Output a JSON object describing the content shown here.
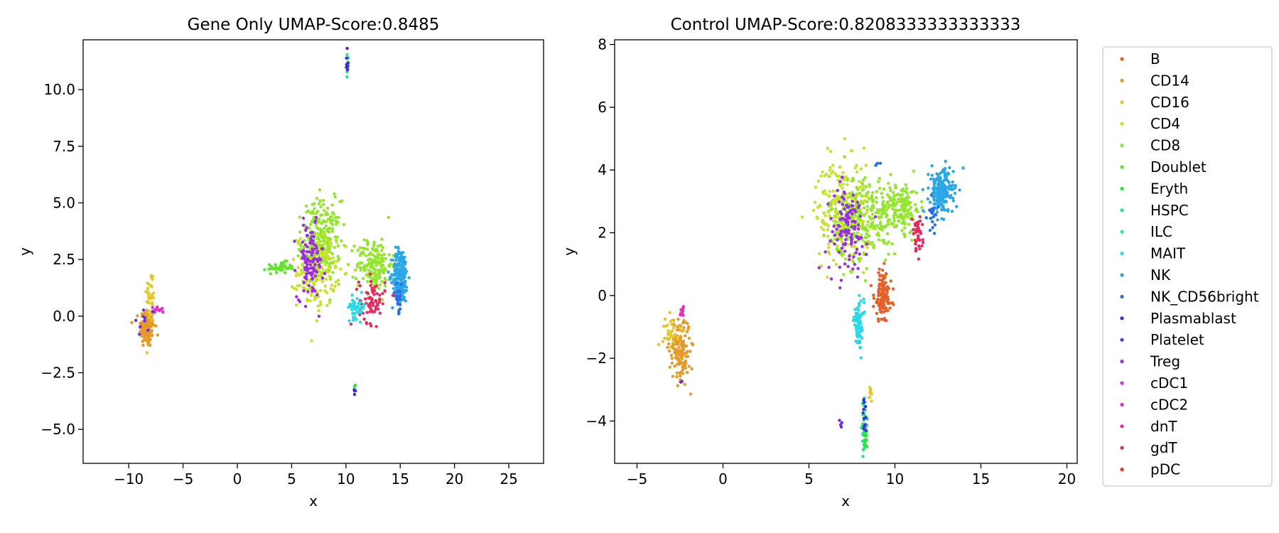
{
  "chart_data": [
    {
      "type": "scatter",
      "title": "Gene Only UMAP-Score:0.8485",
      "xlabel": "x",
      "ylabel": "y",
      "xlim": [
        -14.2,
        28.2
      ],
      "ylim": [
        -6.5,
        12.2
      ],
      "xticks": [
        -10,
        -5,
        0,
        5,
        10,
        15,
        20,
        25
      ],
      "xtick_labels": [
        "−10",
        "−5",
        "0",
        "5",
        "10",
        "15",
        "20",
        "25"
      ],
      "yticks": [
        -5,
        -2.5,
        0,
        2.5,
        5,
        7.5,
        10
      ],
      "ytick_labels": [
        "−5.0",
        "−2.5",
        "0.0",
        "2.5",
        "5.0",
        "7.5",
        "10.0"
      ],
      "grid": false,
      "clusters": [
        {
          "label": "CD14",
          "cx": -8.3,
          "cy": -0.5,
          "sx": 0.35,
          "sy": 0.45,
          "n": 140
        },
        {
          "label": "CD16",
          "cx": -8.0,
          "cy": 0.9,
          "sx": 0.2,
          "sy": 0.6,
          "n": 40
        },
        {
          "label": "cDC2",
          "cx": -7.2,
          "cy": 0.3,
          "sx": 0.25,
          "sy": 0.08,
          "n": 12
        },
        {
          "label": "Platelet",
          "cx": -8.6,
          "cy": -0.3,
          "sx": 0.5,
          "sy": 0.4,
          "n": 10
        },
        {
          "label": "Doublet",
          "cx": 4.0,
          "cy": 2.15,
          "sx": 0.6,
          "sy": 0.12,
          "n": 45
        },
        {
          "label": "CD8",
          "cx": 7.7,
          "cy": 3.3,
          "sx": 0.9,
          "sy": 0.9,
          "n": 260
        },
        {
          "label": "CD4",
          "cx": 7.3,
          "cy": 2.0,
          "sx": 0.9,
          "sy": 0.8,
          "n": 180
        },
        {
          "label": "Treg",
          "cx": 6.7,
          "cy": 2.4,
          "sx": 0.6,
          "sy": 0.8,
          "n": 110
        },
        {
          "label": "CD8",
          "cx": 12.6,
          "cy": 2.3,
          "sx": 0.8,
          "sy": 0.6,
          "n": 160
        },
        {
          "label": "NK",
          "cx": 15.0,
          "cy": 1.8,
          "sx": 0.35,
          "sy": 0.6,
          "n": 220
        },
        {
          "label": "NK_CD56bright",
          "cx": 14.8,
          "cy": 0.8,
          "sx": 0.2,
          "sy": 0.3,
          "n": 25
        },
        {
          "label": "gdT",
          "cx": 12.4,
          "cy": 0.7,
          "sx": 0.6,
          "sy": 0.5,
          "n": 70
        },
        {
          "label": "MAIT",
          "cx": 11.0,
          "cy": 0.4,
          "sx": 0.4,
          "sy": 0.25,
          "n": 45
        },
        {
          "label": "HSPC",
          "cx": 10.1,
          "cy": 11.0,
          "sx": 0.06,
          "sy": 0.3,
          "n": 12
        },
        {
          "label": "Plasmablast",
          "cx": 10.1,
          "cy": 11.1,
          "sx": 0.06,
          "sy": 0.3,
          "n": 8
        },
        {
          "label": "Plasmablast",
          "cx": 10.8,
          "cy": -3.3,
          "sx": 0.05,
          "sy": 0.1,
          "n": 5
        },
        {
          "label": "Eryth",
          "cx": 10.8,
          "cy": -3.05,
          "sx": 0.03,
          "sy": 0.05,
          "n": 2
        }
      ]
    },
    {
      "type": "scatter",
      "title": "Control UMAP-Score:0.8208333333333333",
      "xlabel": "x",
      "ylabel": "y",
      "xlim": [
        -6.3,
        20.6
      ],
      "ylim": [
        -5.35,
        8.15
      ],
      "xticks": [
        -5,
        0,
        5,
        10,
        15,
        20
      ],
      "xtick_labels": [
        "−5",
        "0",
        "5",
        "10",
        "15",
        "20"
      ],
      "yticks": [
        -4,
        -2,
        0,
        2,
        4,
        6,
        8
      ],
      "ytick_labels": [
        "−4",
        "−2",
        "0",
        "2",
        "4",
        "6",
        "8"
      ],
      "grid": false,
      "clusters": [
        {
          "label": "CD14",
          "cx": -2.5,
          "cy": -1.7,
          "sx": 0.3,
          "sy": 0.5,
          "n": 160
        },
        {
          "label": "CD16",
          "cx": -3.0,
          "cy": -1.1,
          "sx": 0.25,
          "sy": 0.25,
          "n": 30
        },
        {
          "label": "cDC2",
          "cx": -2.4,
          "cy": -0.55,
          "sx": 0.06,
          "sy": 0.15,
          "n": 10
        },
        {
          "label": "CD4",
          "cx": 7.0,
          "cy": 2.7,
          "sx": 0.8,
          "sy": 0.8,
          "n": 250
        },
        {
          "label": "CD8",
          "cx": 8.2,
          "cy": 2.5,
          "sx": 1.0,
          "sy": 0.7,
          "n": 250
        },
        {
          "label": "Treg",
          "cx": 7.2,
          "cy": 2.1,
          "sx": 0.6,
          "sy": 0.7,
          "n": 120
        },
        {
          "label": "CD8",
          "cx": 10.3,
          "cy": 2.8,
          "sx": 0.6,
          "sy": 0.4,
          "n": 150
        },
        {
          "label": "NK",
          "cx": 12.7,
          "cy": 3.3,
          "sx": 0.35,
          "sy": 0.35,
          "n": 220
        },
        {
          "label": "NK_CD56bright",
          "cx": 12.2,
          "cy": 2.6,
          "sx": 0.15,
          "sy": 0.3,
          "n": 20
        },
        {
          "label": "gdT",
          "cx": 11.3,
          "cy": 1.9,
          "sx": 0.15,
          "sy": 0.3,
          "n": 40
        },
        {
          "label": "B",
          "cx": 9.3,
          "cy": 0.0,
          "sx": 0.25,
          "sy": 0.4,
          "n": 130
        },
        {
          "label": "MAIT",
          "cx": 7.9,
          "cy": -0.9,
          "sx": 0.15,
          "sy": 0.35,
          "n": 80
        },
        {
          "label": "HSPC",
          "cx": 8.2,
          "cy": -4.2,
          "sx": 0.07,
          "sy": 0.35,
          "n": 40
        },
        {
          "label": "Eryth",
          "cx": 8.3,
          "cy": -4.5,
          "sx": 0.05,
          "sy": 0.2,
          "n": 15
        },
        {
          "label": "Plasmablast",
          "cx": 8.2,
          "cy": -3.8,
          "sx": 0.07,
          "sy": 0.25,
          "n": 12
        },
        {
          "label": "Platelet",
          "cx": 6.9,
          "cy": -4.05,
          "sx": 0.08,
          "sy": 0.05,
          "n": 4
        },
        {
          "label": "CD16",
          "cx": 8.6,
          "cy": -3.1,
          "sx": 0.05,
          "sy": 0.15,
          "n": 10
        },
        {
          "label": "NK_CD56bright",
          "cx": 9.0,
          "cy": 4.2,
          "sx": 0.1,
          "sy": 0.05,
          "n": 4
        },
        {
          "label": "Platelet",
          "cx": -2.4,
          "cy": -2.75,
          "sx": 0.05,
          "sy": 0.05,
          "n": 2
        }
      ]
    }
  ],
  "legend": {
    "placement": "right",
    "entries": [
      {
        "label": "B",
        "color": "#e5602a"
      },
      {
        "label": "CD14",
        "color": "#e69a2b"
      },
      {
        "label": "CD16",
        "color": "#e4c72b"
      },
      {
        "label": "CD4",
        "color": "#c6e22b"
      },
      {
        "label": "CD8",
        "color": "#92e62b"
      },
      {
        "label": "Doublet",
        "color": "#5fe62b"
      },
      {
        "label": "Eryth",
        "color": "#2be63a"
      },
      {
        "label": "HSPC",
        "color": "#2be67a"
      },
      {
        "label": "ILC",
        "color": "#2be6c4"
      },
      {
        "label": "MAIT",
        "color": "#2bd9e6"
      },
      {
        "label": "NK",
        "color": "#2ba7e6"
      },
      {
        "label": "NK_CD56bright",
        "color": "#2b6de6"
      },
      {
        "label": "Plasmablast",
        "color": "#3a2be6"
      },
      {
        "label": "Platelet",
        "color": "#6e2be6"
      },
      {
        "label": "Treg",
        "color": "#9e2be6"
      },
      {
        "label": "cDC1",
        "color": "#d52be6"
      },
      {
        "label": "cDC2",
        "color": "#e62bc6"
      },
      {
        "label": "dnT",
        "color": "#e62b96"
      },
      {
        "label": "gdT",
        "color": "#e62b5e"
      },
      {
        "label": "pDC",
        "color": "#e6352b"
      }
    ]
  }
}
